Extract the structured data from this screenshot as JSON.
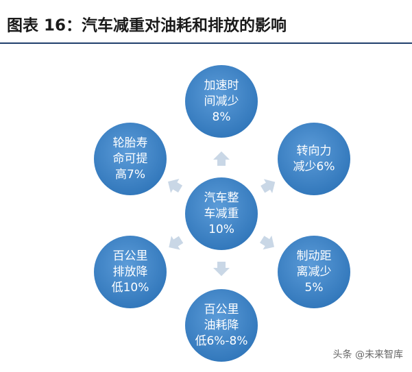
{
  "header": {
    "title": "图表 16：汽车减重对油耗和排放的影响"
  },
  "center": {
    "lines": [
      "汽车整",
      "车减重",
      "10%"
    ]
  },
  "nodes": [
    {
      "lines": [
        "加速时",
        "间减少",
        "8%"
      ]
    },
    {
      "lines": [
        "转向力",
        "减少6%"
      ]
    },
    {
      "lines": [
        "制动距",
        "离减少",
        "5%"
      ]
    },
    {
      "lines": [
        "百公里",
        "油耗降",
        "低6%-8%"
      ]
    },
    {
      "lines": [
        "百公里",
        "排放降",
        "低10%"
      ]
    },
    {
      "lines": [
        "轮胎寿",
        "命可提",
        "高7%"
      ]
    }
  ],
  "watermark": "头条 @未来智库"
}
